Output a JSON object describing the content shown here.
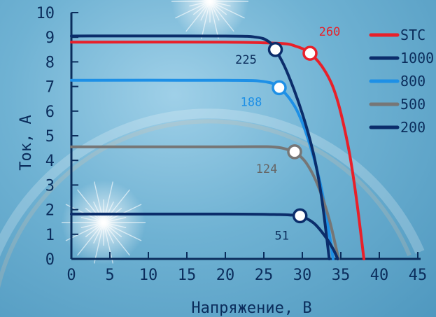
{
  "chart_data": {
    "type": "line",
    "xlabel": "Напряжение, В",
    "ylabel": "Ток, А",
    "xlim": [
      0,
      45
    ],
    "ylim": [
      0,
      10
    ],
    "xticks": [
      "0",
      "5",
      "10",
      "15",
      "20",
      "25",
      "30",
      "35",
      "40",
      "45"
    ],
    "yticks": [
      "0",
      "1",
      "2",
      "3",
      "4",
      "5",
      "6",
      "7",
      "8",
      "9",
      "10"
    ],
    "grid": false,
    "legend_position": "top-right",
    "series": [
      {
        "name": "STC",
        "color": "#e8202a",
        "points": [
          [
            0,
            8.8
          ],
          [
            20,
            8.8
          ],
          [
            27,
            8.75
          ],
          [
            29,
            8.65
          ],
          [
            31,
            8.35
          ],
          [
            33,
            7.6
          ],
          [
            34.5,
            6.5
          ],
          [
            36,
            4.5
          ],
          [
            37,
            2.5
          ],
          [
            38,
            0
          ]
        ],
        "mpp": [
          31,
          8.35
        ],
        "annotation": "260"
      },
      {
        "name": "1000",
        "color": "#0b2d6b",
        "points": [
          [
            0,
            9.05
          ],
          [
            20,
            9.05
          ],
          [
            24,
            9.0
          ],
          [
            25.5,
            8.85
          ],
          [
            26.5,
            8.5
          ],
          [
            28,
            7.6
          ],
          [
            30,
            5.9
          ],
          [
            31.5,
            4.2
          ],
          [
            32.5,
            2.5
          ],
          [
            33.5,
            0
          ]
        ],
        "mpp": [
          26.5,
          8.5
        ],
        "annotation": "225"
      },
      {
        "name": "800",
        "color": "#1e90e6",
        "points": [
          [
            0,
            7.25
          ],
          [
            20,
            7.25
          ],
          [
            25,
            7.2
          ],
          [
            27,
            6.95
          ],
          [
            29,
            6.2
          ],
          [
            30.5,
            5.1
          ],
          [
            32,
            3.5
          ],
          [
            33,
            2.0
          ],
          [
            34,
            0
          ]
        ],
        "mpp": [
          27,
          6.95
        ],
        "annotation": "188"
      },
      {
        "name": "500",
        "color": "#767676",
        "points": [
          [
            0,
            4.55
          ],
          [
            20,
            4.55
          ],
          [
            26,
            4.55
          ],
          [
            28,
            4.45
          ],
          [
            29,
            4.35
          ],
          [
            30.5,
            3.9
          ],
          [
            32,
            3.0
          ],
          [
            33.5,
            1.6
          ],
          [
            34.7,
            0
          ]
        ],
        "mpp": [
          29,
          4.35
        ],
        "annotation": "124"
      },
      {
        "name": "200",
        "color": "#0b2d6b",
        "points": [
          [
            0,
            1.82
          ],
          [
            20,
            1.82
          ],
          [
            27,
            1.8
          ],
          [
            28.5,
            1.78
          ],
          [
            29.7,
            1.75
          ],
          [
            31.5,
            1.45
          ],
          [
            33,
            0.9
          ],
          [
            34,
            0.4
          ],
          [
            34.6,
            0
          ]
        ],
        "mpp": [
          29.7,
          1.75
        ],
        "annotation": "51"
      }
    ]
  }
}
